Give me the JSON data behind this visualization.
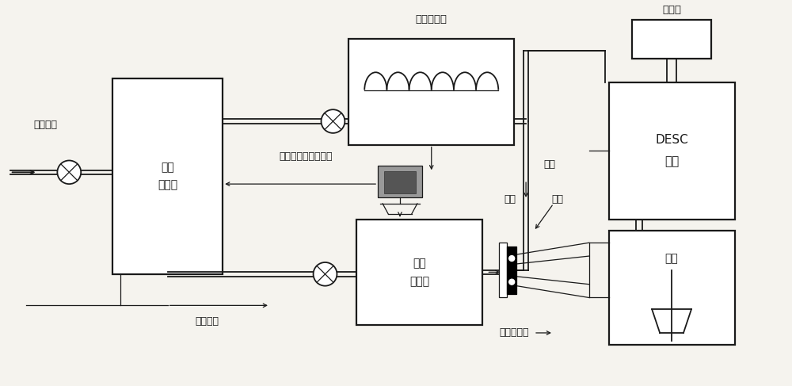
{
  "bg_color": "#f5f3ee",
  "line_color": "#1a1a1a",
  "labels": {
    "high_pressure": "高压气流",
    "flow_control": "气流\n控制阀",
    "gas_heater": "气体加热器",
    "data_system": "数据收集及控制系统",
    "powder_feeder": "粉末\n进料器",
    "carrier_gas": "运载气体",
    "powder": "粉末",
    "gas": "气体",
    "nozzle": "喷嘴",
    "deposition": "微粒沉积区",
    "desc_system": "DESC\n系统",
    "outlet": "出气口",
    "sample": "试样"
  },
  "figsize": [
    10.0,
    4.87
  ],
  "dpi": 100
}
